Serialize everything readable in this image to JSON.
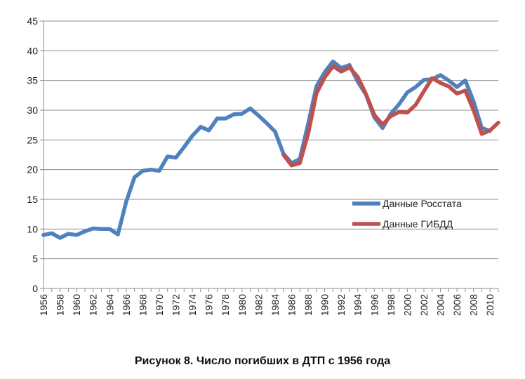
{
  "caption": "Рисунок 8. Число погибших в ДТП с 1956 года",
  "chart_data": {
    "type": "line",
    "title": "",
    "xlabel": "",
    "ylabel": "",
    "ylim": [
      0,
      45
    ],
    "yticks": [
      0,
      5,
      10,
      15,
      20,
      25,
      30,
      35,
      40,
      45
    ],
    "xlim": [
      1956,
      2011
    ],
    "xtick_labels": [
      "1956",
      "1958",
      "1960",
      "1962",
      "1964",
      "1966",
      "1968",
      "1970",
      "1972",
      "1974",
      "1976",
      "1978",
      "1980",
      "1982",
      "1984",
      "1986",
      "1988",
      "1990",
      "1992",
      "1994",
      "1996",
      "1998",
      "2000",
      "2002",
      "2004",
      "2006",
      "2008",
      "2010"
    ],
    "grid": "horizontal",
    "legend_position": "right",
    "series": [
      {
        "name": "Данные Росстата",
        "color": "#4F81BD",
        "x": [
          1956,
          1957,
          1958,
          1959,
          1960,
          1961,
          1962,
          1963,
          1964,
          1965,
          1966,
          1967,
          1968,
          1969,
          1970,
          1971,
          1972,
          1973,
          1974,
          1975,
          1976,
          1977,
          1978,
          1979,
          1980,
          1981,
          1982,
          1983,
          1984,
          1985,
          1986,
          1987,
          1988,
          1989,
          1990,
          1991,
          1992,
          1993,
          1994,
          1995,
          1996,
          1997,
          1998,
          1999,
          2000,
          2001,
          2002,
          2003,
          2004,
          2005,
          2006,
          2007,
          2008,
          2009,
          2010
        ],
        "values": [
          9.0,
          9.3,
          8.5,
          9.2,
          9.0,
          9.6,
          10.1,
          10.0,
          10.0,
          9.1,
          14.6,
          18.7,
          19.8,
          20.0,
          19.8,
          22.2,
          22.0,
          23.8,
          25.7,
          27.2,
          26.6,
          28.6,
          28.6,
          29.3,
          29.4,
          30.3,
          29.1,
          27.8,
          26.4,
          22.7,
          21.1,
          21.8,
          27.7,
          34.0,
          36.4,
          38.2,
          37.1,
          37.6,
          34.8,
          32.6,
          28.8,
          27.0,
          29.4,
          31.0,
          33.0,
          33.9,
          35.1,
          35.2,
          35.9,
          35.0,
          33.9,
          35.0,
          31.5,
          27.0,
          26.5
        ]
      },
      {
        "name": "Данные ГИБДД",
        "color": "#C0504D",
        "x": [
          1985,
          1986,
          1987,
          1988,
          1989,
          1990,
          1991,
          1992,
          1993,
          1994,
          1995,
          1996,
          1997,
          1998,
          1999,
          2000,
          2001,
          2002,
          2003,
          2004,
          2005,
          2006,
          2007,
          2008,
          2009,
          2010,
          2011
        ],
        "values": [
          22.5,
          20.7,
          21.1,
          26.0,
          32.8,
          35.5,
          37.4,
          36.5,
          37.2,
          35.6,
          32.7,
          29.2,
          27.6,
          29.0,
          29.7,
          29.6,
          30.9,
          33.2,
          35.4,
          34.6,
          34.0,
          32.8,
          33.3,
          30.0,
          26.0,
          26.6,
          27.9
        ]
      }
    ]
  }
}
